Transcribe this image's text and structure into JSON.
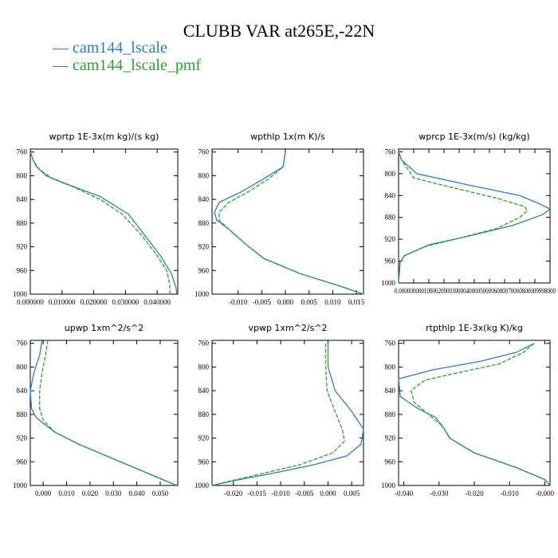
{
  "title": "CLUBB VAR at265E,-22N",
  "colors": {
    "series_0": "#2f7dbf",
    "series_1": "#2ca02c"
  },
  "legend": [
    {
      "label": "— cam144_lscale"
    },
    {
      "label": "— cam144_lscale_pmf"
    }
  ],
  "chart_data": [
    {
      "type": "line",
      "title": "wprtp  1E-3x(m kg)/(s kg)",
      "xlim": [
        0.0,
        0.0465
      ],
      "ylim": [
        1000,
        755
      ],
      "y_inverted": true,
      "x_ticks": [
        0.0,
        0.01,
        0.02,
        0.03,
        0.04
      ],
      "x_tick_labels": [
        "0.000000",
        "0.010000",
        "0.020000",
        "0.030000",
        "0.040000"
      ],
      "y_ticks": [
        760,
        800,
        840,
        880,
        920,
        960,
        1000
      ],
      "y_tick_labels": [
        "760",
        "800",
        "840",
        "880",
        "920",
        "960",
        "1000"
      ],
      "series": [
        {
          "name": "cam144_lscale",
          "style": "solid",
          "values": [
            {
              "x": 0.0,
              "y": 760
            },
            {
              "x": 0.001,
              "y": 775
            },
            {
              "x": 0.002,
              "y": 785
            },
            {
              "x": 0.005,
              "y": 800
            },
            {
              "x": 0.012,
              "y": 815
            },
            {
              "x": 0.022,
              "y": 835
            },
            {
              "x": 0.031,
              "y": 865
            },
            {
              "x": 0.036,
              "y": 900
            },
            {
              "x": 0.041,
              "y": 935
            },
            {
              "x": 0.0445,
              "y": 965
            },
            {
              "x": 0.046,
              "y": 990
            },
            {
              "x": 0.0462,
              "y": 1000
            }
          ]
        },
        {
          "name": "cam144_lscale_pmf",
          "style": "dashed",
          "values": [
            {
              "x": 0.0,
              "y": 760
            },
            {
              "x": 0.001,
              "y": 775
            },
            {
              "x": 0.003,
              "y": 790
            },
            {
              "x": 0.007,
              "y": 805
            },
            {
              "x": 0.014,
              "y": 820
            },
            {
              "x": 0.022,
              "y": 840
            },
            {
              "x": 0.029,
              "y": 865
            },
            {
              "x": 0.035,
              "y": 900
            },
            {
              "x": 0.04,
              "y": 935
            },
            {
              "x": 0.043,
              "y": 960
            },
            {
              "x": 0.044,
              "y": 985
            },
            {
              "x": 0.044,
              "y": 1000
            }
          ]
        }
      ]
    },
    {
      "type": "line",
      "title": "wpthlp  1x(m K)/s",
      "xlim": [
        -0.0155,
        0.0165
      ],
      "ylim": [
        1000,
        755
      ],
      "y_inverted": true,
      "x_ticks": [
        -0.01,
        -0.005,
        0.0,
        0.005,
        0.01,
        0.015
      ],
      "x_tick_labels": [
        "-0.010",
        "-0.005",
        "0.000",
        "0.005",
        "0.010",
        "0.015"
      ],
      "y_ticks": [
        760,
        800,
        840,
        880,
        920,
        960,
        1000
      ],
      "y_tick_labels": [
        "760",
        "800",
        "840",
        "880",
        "920",
        "960",
        "1000"
      ],
      "series": [
        {
          "name": "cam144_lscale",
          "style": "solid",
          "values": [
            {
              "x": 0.0,
              "y": 760
            },
            {
              "x": -0.0005,
              "y": 785
            },
            {
              "x": -0.0045,
              "y": 805
            },
            {
              "x": -0.0095,
              "y": 828
            },
            {
              "x": -0.014,
              "y": 845
            },
            {
              "x": -0.015,
              "y": 862
            },
            {
              "x": -0.0145,
              "y": 875
            },
            {
              "x": -0.012,
              "y": 890
            },
            {
              "x": -0.0085,
              "y": 915
            },
            {
              "x": -0.0045,
              "y": 940
            },
            {
              "x": 0.003,
              "y": 965
            },
            {
              "x": 0.011,
              "y": 985
            },
            {
              "x": 0.0165,
              "y": 1000
            }
          ]
        },
        {
          "name": "cam144_lscale_pmf",
          "style": "dashed",
          "values": [
            {
              "x": 0.0,
              "y": 760
            },
            {
              "x": -0.0005,
              "y": 785
            },
            {
              "x": -0.0035,
              "y": 805
            },
            {
              "x": -0.008,
              "y": 828
            },
            {
              "x": -0.012,
              "y": 845
            },
            {
              "x": -0.014,
              "y": 862
            },
            {
              "x": -0.014,
              "y": 875
            },
            {
              "x": -0.012,
              "y": 890
            },
            {
              "x": -0.0085,
              "y": 915
            },
            {
              "x": -0.0045,
              "y": 940
            },
            {
              "x": 0.003,
              "y": 965
            },
            {
              "x": 0.011,
              "y": 985
            },
            {
              "x": 0.0165,
              "y": 1000
            }
          ]
        }
      ]
    },
    {
      "type": "line",
      "title": "wprcp  1E-3x(m/s) (kg/kg)",
      "xlim": [
        0.0,
        0.0001
      ],
      "ylim": [
        1000,
        755
      ],
      "y_inverted": true,
      "x_ticks": [
        0.0,
        1e-05,
        2e-05,
        3e-05,
        4e-05,
        5e-05,
        6e-05,
        7e-05,
        8e-05,
        9e-05,
        0.0001
      ],
      "x_tick_labels": [
        "0.000000",
        "0.000010",
        "0.000020",
        "0.000030",
        "0.000040",
        "0.000050",
        "0.000060",
        "0.000070",
        "0.000080",
        "0.000090",
        "0.000100"
      ],
      "x_tick_label_overlay": "0.00000000010000200003000040000500006000070000800009998000",
      "y_ticks": [
        760,
        800,
        840,
        880,
        920,
        960,
        1000
      ],
      "y_tick_labels": [
        "760",
        "800",
        "840",
        "880",
        "920",
        "960",
        "1000"
      ],
      "series": [
        {
          "name": "cam144_lscale",
          "style": "solid",
          "values": [
            {
              "x": 0.0,
              "y": 760
            },
            {
              "x": 2e-06,
              "y": 775
            },
            {
              "x": 1.2e-05,
              "y": 800
            },
            {
              "x": 4.5e-05,
              "y": 820
            },
            {
              "x": 8e-05,
              "y": 840
            },
            {
              "x": 9.3e-05,
              "y": 855
            },
            {
              "x": 0.0001,
              "y": 865
            },
            {
              "x": 9.5e-05,
              "y": 875
            },
            {
              "x": 7.5e-05,
              "y": 895
            },
            {
              "x": 4.5e-05,
              "y": 915
            },
            {
              "x": 2e-05,
              "y": 930
            },
            {
              "x": 4e-06,
              "y": 950
            },
            {
              "x": 1e-06,
              "y": 962
            },
            {
              "x": 0.0,
              "y": 1000
            }
          ]
        },
        {
          "name": "cam144_lscale_pmf",
          "style": "dashed",
          "values": [
            {
              "x": 0.0,
              "y": 760
            },
            {
              "x": 2e-06,
              "y": 775
            },
            {
              "x": 1e-05,
              "y": 808
            },
            {
              "x": 3.5e-05,
              "y": 825
            },
            {
              "x": 6.5e-05,
              "y": 845
            },
            {
              "x": 8.3e-05,
              "y": 860
            },
            {
              "x": 8.5e-05,
              "y": 868
            },
            {
              "x": 8e-05,
              "y": 880
            },
            {
              "x": 6.5e-05,
              "y": 900
            },
            {
              "x": 4e-05,
              "y": 918
            },
            {
              "x": 1.8e-05,
              "y": 933
            },
            {
              "x": 4e-06,
              "y": 950
            },
            {
              "x": 1e-06,
              "y": 962
            },
            {
              "x": 0.0,
              "y": 1000
            }
          ]
        }
      ]
    },
    {
      "type": "line",
      "title": "upwp  1xm^2/s^2",
      "xlim": [
        -0.0055,
        0.0575
      ],
      "ylim": [
        1000,
        755
      ],
      "y_inverted": true,
      "x_ticks": [
        0.0,
        0.01,
        0.02,
        0.03,
        0.04,
        0.05
      ],
      "x_tick_labels": [
        "0.000",
        "0.010",
        "0.020",
        "0.030",
        "0.040",
        "0.050"
      ],
      "y_ticks": [
        760,
        800,
        840,
        880,
        920,
        960,
        1000
      ],
      "y_tick_labels": [
        "760",
        "800",
        "840",
        "880",
        "920",
        "960",
        "1000"
      ],
      "series": [
        {
          "name": "cam144_lscale",
          "style": "solid",
          "values": [
            {
              "x": -0.0005,
              "y": 755
            },
            {
              "x": -0.0015,
              "y": 780
            },
            {
              "x": -0.004,
              "y": 810
            },
            {
              "x": -0.0055,
              "y": 840
            },
            {
              "x": -0.005,
              "y": 870
            },
            {
              "x": -0.003,
              "y": 885
            },
            {
              "x": 0.0,
              "y": 895
            },
            {
              "x": 0.005,
              "y": 910
            },
            {
              "x": 0.015,
              "y": 930
            },
            {
              "x": 0.03,
              "y": 955
            },
            {
              "x": 0.045,
              "y": 980
            },
            {
              "x": 0.057,
              "y": 1000
            }
          ]
        },
        {
          "name": "cam144_lscale_pmf",
          "style": "dashed",
          "values": [
            {
              "x": 0.002,
              "y": 755
            },
            {
              "x": 0.001,
              "y": 780
            },
            {
              "x": -0.0005,
              "y": 810
            },
            {
              "x": -0.0015,
              "y": 840
            },
            {
              "x": -0.0015,
              "y": 870
            },
            {
              "x": 0.0,
              "y": 890
            },
            {
              "x": 0.005,
              "y": 910
            },
            {
              "x": 0.015,
              "y": 930
            },
            {
              "x": 0.03,
              "y": 955
            },
            {
              "x": 0.045,
              "y": 980
            },
            {
              "x": 0.057,
              "y": 1000
            }
          ]
        }
      ]
    },
    {
      "type": "line",
      "title": "vpwp  1xm^2/s^2",
      "xlim": [
        -0.0245,
        0.0075
      ],
      "ylim": [
        1000,
        755
      ],
      "y_inverted": true,
      "x_ticks": [
        -0.02,
        -0.015,
        -0.01,
        -0.005,
        0.0,
        0.005
      ],
      "x_tick_labels": [
        "-0.020",
        "-0.015",
        "-0.010",
        "-0.005",
        "0.000",
        "0.005"
      ],
      "y_ticks": [
        760,
        800,
        840,
        880,
        920,
        960,
        1000
      ],
      "y_tick_labels": [
        "760",
        "800",
        "840",
        "880",
        "920",
        "960",
        "1000"
      ],
      "series": [
        {
          "name": "cam144_lscale",
          "style": "solid",
          "values": [
            {
              "x": 0.0,
              "y": 760
            },
            {
              "x": 0.0,
              "y": 800
            },
            {
              "x": 0.0015,
              "y": 840
            },
            {
              "x": 0.005,
              "y": 875
            },
            {
              "x": 0.0075,
              "y": 905
            },
            {
              "x": 0.007,
              "y": 930
            },
            {
              "x": 0.004,
              "y": 950
            },
            {
              "x": -0.003,
              "y": 965
            },
            {
              "x": -0.012,
              "y": 980
            },
            {
              "x": -0.02,
              "y": 992
            },
            {
              "x": -0.0245,
              "y": 1000
            }
          ]
        },
        {
          "name": "cam144_lscale_pmf",
          "style": "dashed",
          "values": [
            {
              "x": -0.0005,
              "y": 760
            },
            {
              "x": -0.0005,
              "y": 800
            },
            {
              "x": -0.0002,
              "y": 840
            },
            {
              "x": 0.0015,
              "y": 875
            },
            {
              "x": 0.003,
              "y": 905
            },
            {
              "x": 0.0035,
              "y": 925
            },
            {
              "x": 0.001,
              "y": 945
            },
            {
              "x": -0.006,
              "y": 965
            },
            {
              "x": -0.015,
              "y": 982
            },
            {
              "x": -0.022,
              "y": 995
            },
            {
              "x": -0.0245,
              "y": 1000
            }
          ]
        }
      ]
    },
    {
      "type": "line",
      "title": "rtpthlp  1E-3x(kg K)/kg",
      "xlim": [
        -0.0415,
        0.0015
      ],
      "ylim": [
        1000,
        755
      ],
      "y_inverted": true,
      "x_ticks": [
        -0.04,
        -0.03,
        -0.02,
        -0.01,
        0.0
      ],
      "x_tick_labels": [
        "-0.040",
        "-0.030",
        "-0.020",
        "-0.010",
        "-0.000"
      ],
      "y_ticks": [
        760,
        800,
        840,
        880,
        920,
        960,
        1000
      ],
      "y_tick_labels": [
        "760",
        "800",
        "840",
        "880",
        "920",
        "960",
        "1000"
      ],
      "series": [
        {
          "name": "cam144_lscale",
          "style": "solid",
          "values": [
            {
              "x": -0.003,
              "y": 760
            },
            {
              "x": -0.008,
              "y": 775
            },
            {
              "x": -0.018,
              "y": 790
            },
            {
              "x": -0.032,
              "y": 805
            },
            {
              "x": -0.0415,
              "y": 820
            },
            {
              "x": -0.041,
              "y": 850
            },
            {
              "x": -0.036,
              "y": 870
            },
            {
              "x": -0.031,
              "y": 885
            },
            {
              "x": -0.029,
              "y": 900
            },
            {
              "x": -0.027,
              "y": 920
            },
            {
              "x": -0.02,
              "y": 945
            },
            {
              "x": -0.008,
              "y": 970
            },
            {
              "x": 0.0,
              "y": 990
            },
            {
              "x": 0.0015,
              "y": 1000
            }
          ]
        },
        {
          "name": "cam144_lscale_pmf",
          "style": "dashed",
          "values": [
            {
              "x": -0.003,
              "y": 760
            },
            {
              "x": -0.006,
              "y": 775
            },
            {
              "x": -0.013,
              "y": 795
            },
            {
              "x": -0.025,
              "y": 810
            },
            {
              "x": -0.034,
              "y": 822
            },
            {
              "x": -0.038,
              "y": 840
            },
            {
              "x": -0.037,
              "y": 860
            },
            {
              "x": -0.033,
              "y": 880
            },
            {
              "x": -0.029,
              "y": 900
            },
            {
              "x": -0.027,
              "y": 920
            },
            {
              "x": -0.02,
              "y": 945
            },
            {
              "x": -0.008,
              "y": 970
            },
            {
              "x": 0.0,
              "y": 990
            },
            {
              "x": 0.0015,
              "y": 1000
            }
          ]
        }
      ]
    }
  ]
}
